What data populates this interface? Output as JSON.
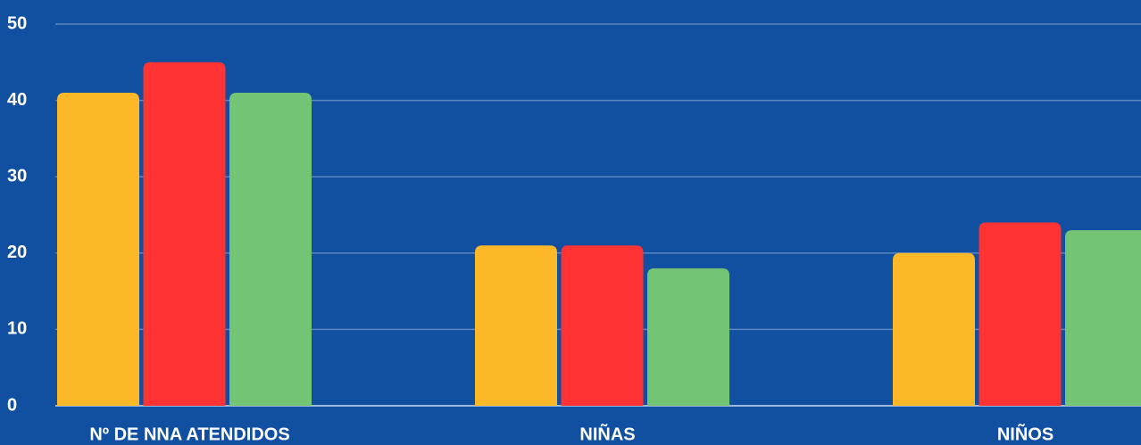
{
  "chart_data": {
    "type": "bar",
    "categories": [
      "Nº DE NNA ATENDIDOS",
      "NIÑAS",
      "NIÑOS"
    ],
    "series": [
      {
        "color": "#fdb827",
        "values": [
          41,
          21,
          20
        ]
      },
      {
        "color": "#ff3333",
        "values": [
          45,
          21,
          24
        ]
      },
      {
        "color": "#74c476",
        "values": [
          41,
          18,
          23
        ]
      }
    ],
    "ylim": [
      0,
      50
    ],
    "yticks": [
      0,
      10,
      20,
      30,
      40,
      50
    ],
    "grid": true
  }
}
